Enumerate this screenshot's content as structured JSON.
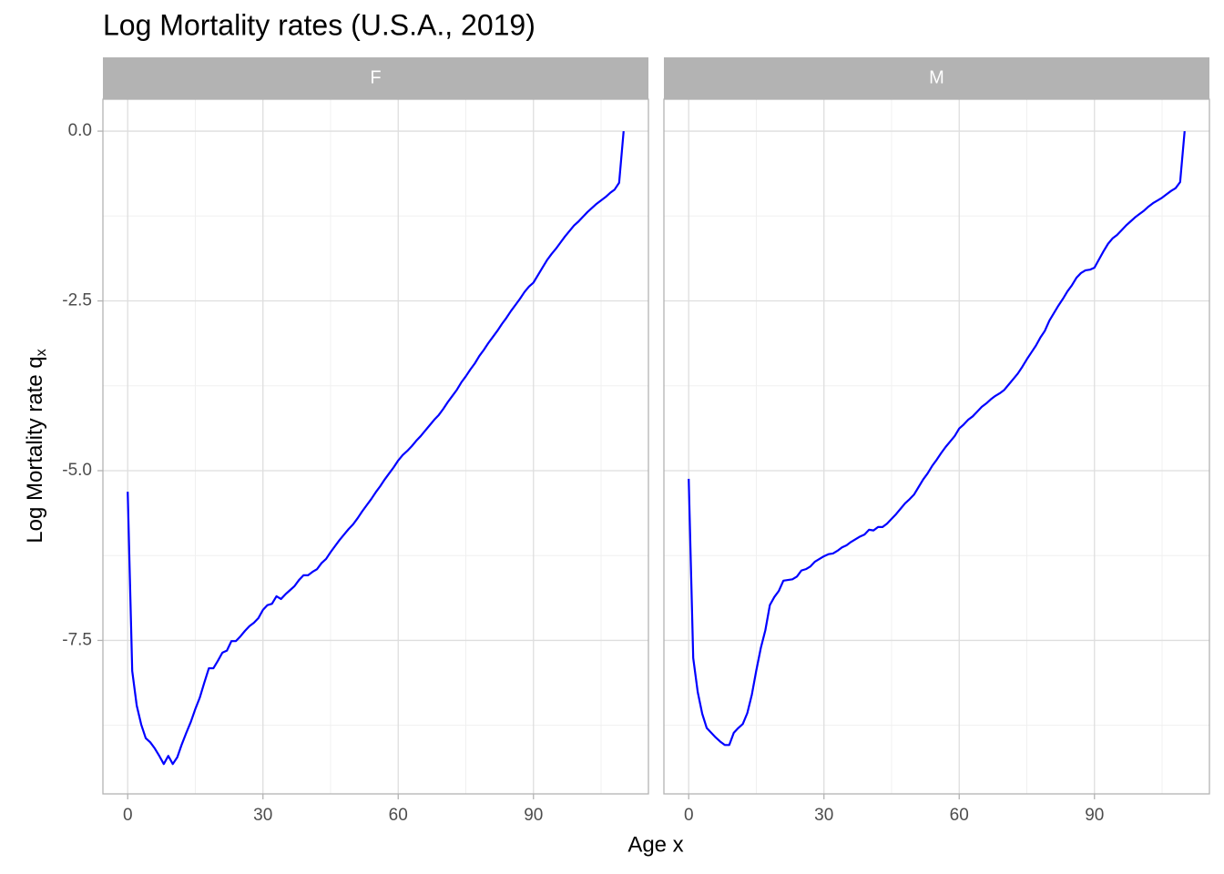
{
  "chart_data": {
    "type": "line",
    "title": "Log Mortality rates (U.S.A., 2019)",
    "xlabel": "Age x",
    "ylabel": "Log Mortality rate q",
    "ylabel_sub": "x",
    "color": "#0000ff",
    "grid": true,
    "xlim": [
      -5.5,
      115.5
    ],
    "xticks": [
      0,
      30,
      60,
      90
    ],
    "xminor": [
      15,
      45,
      75,
      105
    ],
    "ylim": [
      -9.76,
      0.47
    ],
    "yticks": [
      {
        "value": 0,
        "label": "0.0"
      },
      -2.5,
      {
        "value": -5,
        "label": "-5.0"
      },
      -7.5
    ],
    "yminor": [
      -1.25,
      -3.75,
      -6.25,
      -8.75
    ],
    "x": [
      0,
      1,
      2,
      3,
      4,
      5,
      6,
      7,
      8,
      9,
      10,
      11,
      12,
      13,
      14,
      15,
      16,
      17,
      18,
      19,
      20,
      21,
      22,
      23,
      24,
      25,
      26,
      27,
      28,
      29,
      30,
      31,
      32,
      33,
      34,
      35,
      36,
      37,
      38,
      39,
      40,
      41,
      42,
      43,
      44,
      45,
      46,
      47,
      48,
      49,
      50,
      51,
      52,
      53,
      54,
      55,
      56,
      57,
      58,
      59,
      60,
      61,
      62,
      63,
      64,
      65,
      66,
      67,
      68,
      69,
      70,
      71,
      72,
      73,
      74,
      75,
      76,
      77,
      78,
      79,
      80,
      81,
      82,
      83,
      84,
      85,
      86,
      87,
      88,
      89,
      90,
      91,
      92,
      93,
      94,
      95,
      96,
      97,
      98,
      99,
      100,
      101,
      102,
      103,
      104,
      105,
      106,
      107,
      108,
      109,
      110
    ],
    "facets": [
      {
        "label": "F",
        "values": [
          -5.31,
          -7.95,
          -8.46,
          -8.74,
          -8.94,
          -9.0,
          -9.09,
          -9.2,
          -9.32,
          -9.2,
          -9.32,
          -9.22,
          -9.03,
          -8.86,
          -8.7,
          -8.51,
          -8.34,
          -8.12,
          -7.91,
          -7.91,
          -7.8,
          -7.68,
          -7.65,
          -7.51,
          -7.51,
          -7.44,
          -7.36,
          -7.29,
          -7.24,
          -7.17,
          -7.05,
          -6.98,
          -6.96,
          -6.85,
          -6.89,
          -6.82,
          -6.76,
          -6.7,
          -6.61,
          -6.54,
          -6.54,
          -6.49,
          -6.45,
          -6.36,
          -6.3,
          -6.2,
          -6.11,
          -6.02,
          -5.94,
          -5.86,
          -5.79,
          -5.7,
          -5.6,
          -5.51,
          -5.42,
          -5.32,
          -5.23,
          -5.13,
          -5.04,
          -4.95,
          -4.85,
          -4.77,
          -4.71,
          -4.64,
          -4.56,
          -4.49,
          -4.41,
          -4.33,
          -4.25,
          -4.18,
          -4.09,
          -3.99,
          -3.9,
          -3.81,
          -3.7,
          -3.61,
          -3.51,
          -3.42,
          -3.31,
          -3.22,
          -3.12,
          -3.03,
          -2.94,
          -2.84,
          -2.75,
          -2.65,
          -2.56,
          -2.47,
          -2.37,
          -2.29,
          -2.23,
          -2.12,
          -2.01,
          -1.9,
          -1.81,
          -1.73,
          -1.64,
          -1.55,
          -1.47,
          -1.39,
          -1.33,
          -1.26,
          -1.19,
          -1.13,
          -1.07,
          -1.02,
          -0.97,
          -0.91,
          -0.86,
          -0.76,
          0
        ]
      },
      {
        "label": "M",
        "values": [
          -5.12,
          -7.76,
          -8.26,
          -8.58,
          -8.79,
          -8.86,
          -8.93,
          -8.99,
          -9.04,
          -9.04,
          -8.86,
          -8.79,
          -8.73,
          -8.57,
          -8.3,
          -7.94,
          -7.61,
          -7.35,
          -6.98,
          -6.86,
          -6.77,
          -6.62,
          -6.61,
          -6.6,
          -6.56,
          -6.47,
          -6.45,
          -6.41,
          -6.34,
          -6.3,
          -6.26,
          -6.23,
          -6.22,
          -6.18,
          -6.13,
          -6.1,
          -6.05,
          -6.01,
          -5.97,
          -5.94,
          -5.87,
          -5.88,
          -5.83,
          -5.83,
          -5.78,
          -5.71,
          -5.64,
          -5.56,
          -5.48,
          -5.42,
          -5.35,
          -5.24,
          -5.13,
          -5.04,
          -4.93,
          -4.84,
          -4.74,
          -4.65,
          -4.57,
          -4.49,
          -4.38,
          -4.32,
          -4.25,
          -4.2,
          -4.13,
          -4.06,
          -4.01,
          -3.95,
          -3.9,
          -3.86,
          -3.81,
          -3.73,
          -3.65,
          -3.57,
          -3.47,
          -3.36,
          -3.26,
          -3.16,
          -3.04,
          -2.94,
          -2.79,
          -2.68,
          -2.57,
          -2.47,
          -2.36,
          -2.27,
          -2.16,
          -2.09,
          -2.05,
          -2.04,
          -2.01,
          -1.89,
          -1.77,
          -1.66,
          -1.58,
          -1.53,
          -1.46,
          -1.39,
          -1.33,
          -1.27,
          -1.22,
          -1.17,
          -1.11,
          -1.06,
          -1.02,
          -0.98,
          -0.93,
          -0.88,
          -0.84,
          -0.75,
          0
        ]
      }
    ]
  }
}
